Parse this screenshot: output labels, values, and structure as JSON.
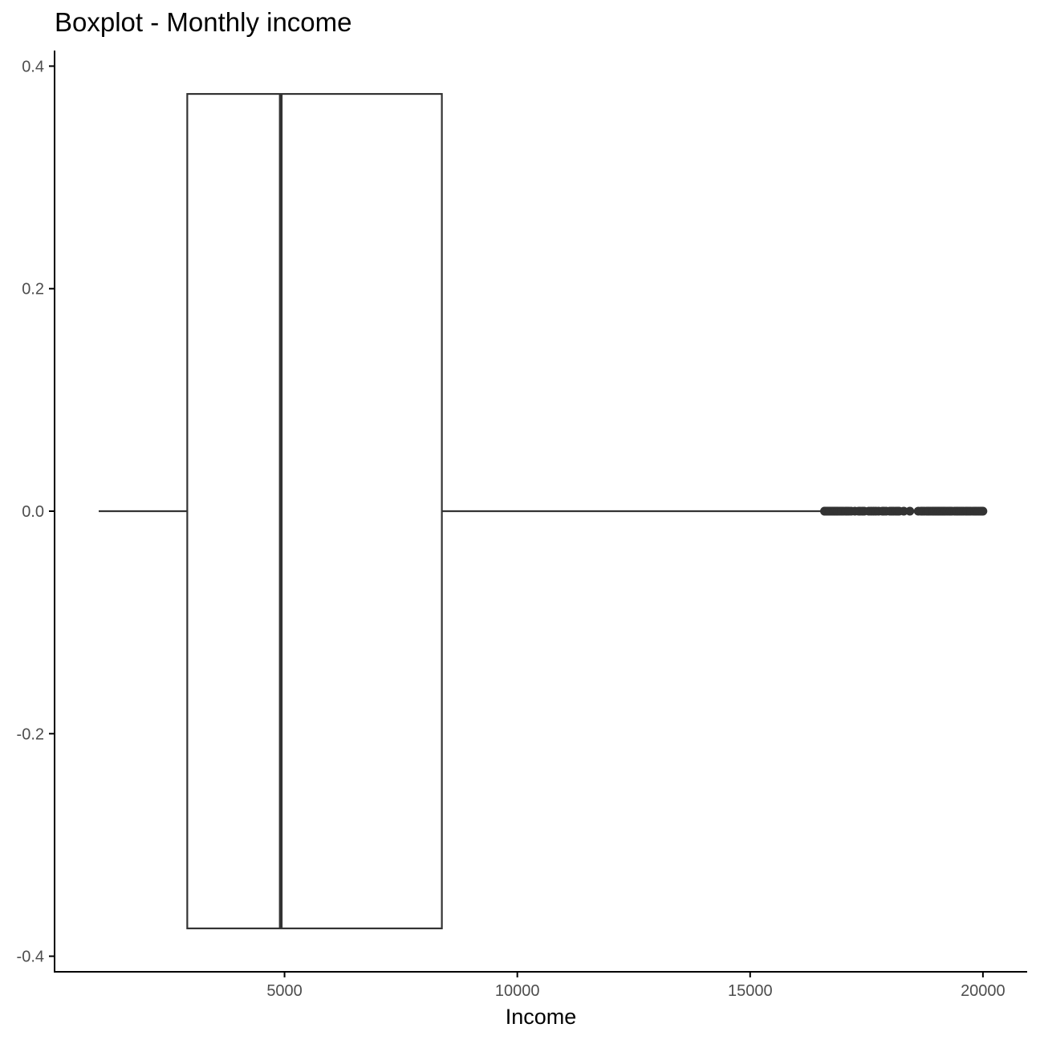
{
  "chart_data": {
    "type": "boxplot",
    "title": "Boxplot - Monthly income",
    "xlabel": "Income",
    "ylabel": "",
    "xlim": [
      61,
      20950
    ],
    "ylim": [
      -0.414,
      0.414
    ],
    "x_ticks": [
      5000,
      10000,
      15000,
      20000
    ],
    "x_tick_labels": [
      "5000",
      "10000",
      "15000",
      "20000"
    ],
    "y_ticks": [
      -0.4,
      -0.2,
      0.0,
      0.2,
      0.4
    ],
    "y_tick_labels": [
      "-0.4",
      "-0.2",
      "0.0",
      "0.2",
      "0.4"
    ],
    "grid": false,
    "orientation": "horizontal",
    "box": {
      "whisker_low": 1009,
      "q1": 2911,
      "median": 4919,
      "q3": 8379,
      "whisker_high": 16595,
      "y_center": 0.0,
      "y_half_width": 0.375
    },
    "outliers": [
      16598,
      16606,
      16640,
      16658,
      16689,
      16704,
      16740,
      16770,
      16800,
      16830,
      16860,
      16880,
      16920,
      16960,
      17000,
      17050,
      17080,
      17120,
      17170,
      17250,
      17330,
      17360,
      17410,
      17450,
      17550,
      17600,
      17650,
      17700,
      17760,
      17840,
      17870,
      17920,
      18000,
      18040,
      18080,
      18130,
      18170,
      18200,
      18300,
      18430,
      18610,
      18670,
      18700,
      18740,
      18790,
      18820,
      18840,
      18880,
      18920,
      18940,
      18970,
      19000,
      19030,
      19050,
      19080,
      19110,
      19140,
      19160,
      19190,
      19230,
      19270,
      19300,
      19330,
      19390,
      19430,
      19460,
      19500,
      19540,
      19580,
      19630,
      19660,
      19700,
      19740,
      19790,
      19830,
      19860,
      19900,
      19940,
      19970,
      19999
    ],
    "colors": {
      "box_stroke": "#333333",
      "box_fill": "#ffffff",
      "axis": "#000000",
      "point": "#333333"
    }
  }
}
